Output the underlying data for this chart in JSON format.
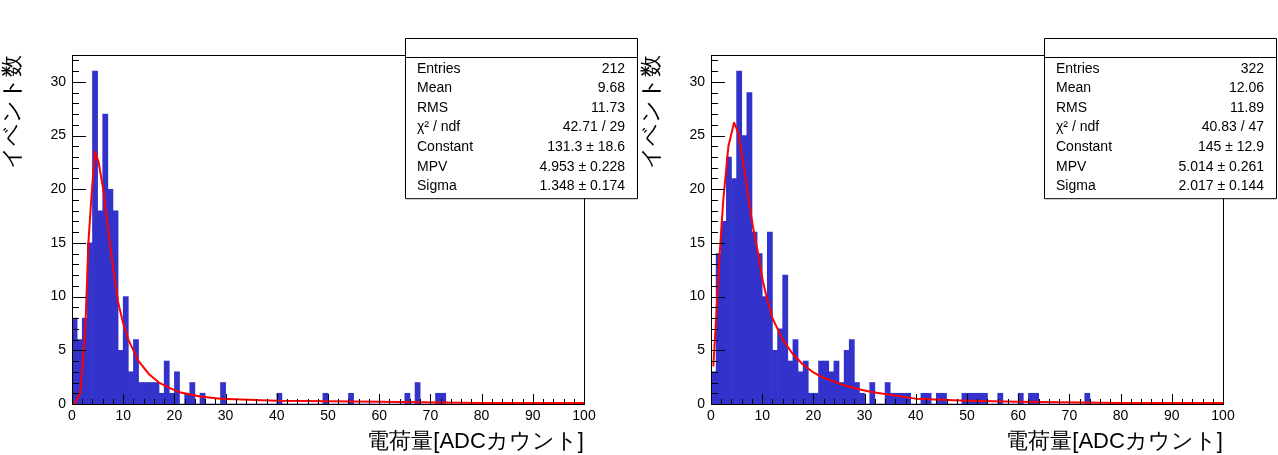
{
  "chart_data": [
    {
      "type": "histogram",
      "xlabel": "電荷量[ADCカウント]",
      "ylabel": "イベント数",
      "color": "#3333cc",
      "grid": false,
      "legend": false,
      "bins": [
        0,
        1,
        2,
        3,
        4,
        5,
        6,
        7,
        8,
        9,
        10,
        11,
        12,
        13,
        14,
        15,
        16,
        17,
        18,
        19,
        20,
        21,
        22,
        23,
        24,
        25,
        26,
        27,
        28,
        29,
        30,
        31,
        32,
        33,
        34,
        35,
        36,
        37,
        38,
        39,
        40,
        41,
        42,
        43,
        44,
        45,
        46,
        47,
        48,
        49,
        50,
        51,
        52,
        53,
        54,
        55,
        56,
        57,
        58,
        59,
        60,
        61,
        62,
        63,
        64,
        65,
        66,
        67,
        68,
        69,
        70,
        71,
        72,
        73,
        74,
        75,
        76,
        77,
        78,
        79,
        80,
        81,
        82,
        83,
        84,
        85,
        86,
        87,
        88,
        89,
        90,
        91,
        92,
        93,
        94,
        95,
        96,
        97,
        98,
        99,
        100
      ],
      "values": [
        8,
        6,
        8,
        15,
        31,
        18,
        27,
        20,
        18,
        5,
        10,
        3,
        6,
        2,
        2,
        2,
        2,
        1,
        4,
        1,
        3,
        0,
        1,
        2,
        0,
        1,
        0,
        0,
        0,
        2,
        0,
        0,
        0,
        0,
        0,
        0,
        0,
        0,
        0,
        0,
        1,
        0,
        0,
        0,
        0,
        0,
        0,
        0,
        0,
        1,
        0,
        0,
        0,
        0,
        1,
        0,
        0,
        0,
        0,
        0,
        0,
        0,
        0,
        0,
        0,
        1,
        0,
        2,
        0,
        0,
        0,
        1,
        1,
        0,
        0,
        0,
        0,
        0,
        0,
        0,
        0,
        0,
        0,
        0,
        0,
        0,
        0,
        0,
        0,
        0,
        0,
        0,
        0,
        0,
        0,
        0,
        0,
        0,
        0,
        0
      ],
      "series": [
        {
          "type": "line",
          "color": "#ff0000",
          "x": [
            0,
            0.5,
            1.6,
            2.6,
            3.2,
            3.9,
            4.5,
            5.2,
            6.1,
            7.1,
            8.1,
            9,
            10,
            11,
            12,
            13,
            15,
            17,
            19,
            21,
            25,
            29,
            40,
            60,
            80,
            100
          ],
          "values": [
            0,
            0,
            1,
            7,
            15,
            20,
            23.5,
            22.5,
            20,
            16,
            12.5,
            9.5,
            7.5,
            6,
            5,
            4,
            2.8,
            2,
            1.5,
            1.1,
            0.7,
            0.5,
            0.3,
            0.2,
            0.1,
            0.1
          ]
        }
      ],
      "xlim": [
        0,
        100
      ],
      "ylim": [
        0,
        32.5
      ],
      "xticks": [
        0,
        {
          "value": 2,
          "label": null
        },
        {
          "value": 4,
          "label": null
        },
        {
          "value": 6,
          "label": null
        },
        {
          "value": 8,
          "label": null
        },
        10,
        {
          "value": 12,
          "label": null
        },
        {
          "value": 14,
          "label": null
        },
        {
          "value": 16,
          "label": null
        },
        {
          "value": 18,
          "label": null
        },
        20,
        {
          "value": 22,
          "label": null
        },
        {
          "value": 24,
          "label": null
        },
        {
          "value": 26,
          "label": null
        },
        {
          "value": 28,
          "label": null
        },
        30,
        {
          "value": 32,
          "label": null
        },
        {
          "value": 34,
          "label": null
        },
        {
          "value": 36,
          "label": null
        },
        {
          "value": 38,
          "label": null
        },
        40,
        {
          "value": 42,
          "label": null
        },
        {
          "value": 44,
          "label": null
        },
        {
          "value": 46,
          "label": null
        },
        {
          "value": 48,
          "label": null
        },
        50,
        {
          "value": 52,
          "label": null
        },
        {
          "value": 54,
          "label": null
        },
        {
          "value": 56,
          "label": null
        },
        {
          "value": 58,
          "label": null
        },
        60,
        {
          "value": 62,
          "label": null
        },
        {
          "value": 64,
          "label": null
        },
        {
          "value": 66,
          "label": null
        },
        {
          "value": 68,
          "label": null
        },
        70,
        {
          "value": 72,
          "label": null
        },
        {
          "value": 74,
          "label": null
        },
        {
          "value": 76,
          "label": null
        },
        {
          "value": 78,
          "label": null
        },
        80,
        {
          "value": 82,
          "label": null
        },
        {
          "value": 84,
          "label": null
        },
        {
          "value": 86,
          "label": null
        },
        {
          "value": 88,
          "label": null
        },
        90,
        {
          "value": 92,
          "label": null
        },
        {
          "value": 94,
          "label": null
        },
        {
          "value": 96,
          "label": null
        },
        {
          "value": 98,
          "label": null
        },
        100
      ],
      "yticks": [
        0,
        {
          "value": 1,
          "label": null
        },
        {
          "value": 2,
          "label": null
        },
        {
          "value": 3,
          "label": null
        },
        {
          "value": 4,
          "label": null
        },
        5,
        {
          "value": 6,
          "label": null
        },
        {
          "value": 7,
          "label": null
        },
        {
          "value": 8,
          "label": null
        },
        {
          "value": 9,
          "label": null
        },
        10,
        {
          "value": 11,
          "label": null
        },
        {
          "value": 12,
          "label": null
        },
        {
          "value": 13,
          "label": null
        },
        {
          "value": 14,
          "label": null
        },
        15,
        {
          "value": 16,
          "label": null
        },
        {
          "value": 17,
          "label": null
        },
        {
          "value": 18,
          "label": null
        },
        {
          "value": 19,
          "label": null
        },
        20,
        {
          "value": 21,
          "label": null
        },
        {
          "value": 22,
          "label": null
        },
        {
          "value": 23,
          "label": null
        },
        {
          "value": 24,
          "label": null
        },
        25,
        {
          "value": 26,
          "label": null
        },
        {
          "value": 27,
          "label": null
        },
        {
          "value": 28,
          "label": null
        },
        {
          "value": 29,
          "label": null
        },
        30,
        {
          "value": 31,
          "label": null
        },
        {
          "value": 32,
          "label": null
        }
      ],
      "annotations": [
        "Entries",
        "212",
        "Mean",
        "9.68",
        "RMS",
        "11.73",
        "χ² / ndf",
        "42.71 / 29",
        "Constant",
        "131.3 ± 18.6",
        "MPV",
        "4.953 ± 0.228",
        "Sigma",
        "1.348 ± 0.174"
      ]
    },
    {
      "type": "histogram",
      "xlabel": "電荷量[ADCカウント]",
      "ylabel": "イベント数",
      "color": "#3333cc",
      "grid": false,
      "legend": false,
      "bins": [
        0,
        1,
        2,
        3,
        4,
        5,
        6,
        7,
        8,
        9,
        10,
        11,
        12,
        13,
        14,
        15,
        16,
        17,
        18,
        19,
        20,
        21,
        22,
        23,
        24,
        25,
        26,
        27,
        28,
        29,
        30,
        31,
        32,
        33,
        34,
        35,
        36,
        37,
        38,
        39,
        40,
        41,
        42,
        43,
        44,
        45,
        46,
        47,
        48,
        49,
        50,
        51,
        52,
        53,
        54,
        55,
        56,
        57,
        58,
        59,
        60,
        61,
        62,
        63,
        64,
        65,
        66,
        67,
        68,
        69,
        70,
        71,
        72,
        73,
        74,
        75,
        76,
        77,
        78,
        79,
        80,
        81,
        82,
        83,
        84,
        85,
        86,
        87,
        88,
        89,
        90,
        91,
        92,
        93,
        94,
        95,
        96,
        97,
        98,
        99,
        100
      ],
      "values": [
        3,
        14,
        17,
        23,
        21,
        31,
        25,
        29,
        16,
        14,
        10,
        16,
        5,
        7,
        12,
        4,
        6,
        3,
        4,
        1,
        1,
        4,
        4,
        3,
        4,
        2,
        5,
        6,
        2,
        1,
        0,
        2,
        0,
        0,
        2,
        1,
        1,
        1,
        1,
        0,
        0,
        1,
        1,
        0,
        1,
        1,
        0,
        0,
        0,
        1,
        1,
        1,
        1,
        1,
        0,
        0,
        1,
        0,
        0,
        0,
        1,
        0,
        1,
        1,
        0,
        0,
        0,
        0,
        0,
        0,
        0,
        0,
        0,
        1,
        0,
        0,
        0,
        0,
        0,
        0,
        0,
        0,
        0,
        0,
        0,
        0,
        0,
        0,
        0,
        0,
        0,
        0,
        0,
        0,
        0,
        0,
        0,
        0,
        0,
        0
      ],
      "series": [
        {
          "type": "line",
          "color": "#ff0000",
          "x": [
            0.45,
            1,
            1.7,
            2.4,
            3.4,
            4.5,
            5.3,
            6.3,
            7.2,
            8.2,
            9.2,
            10.1,
            11.1,
            12,
            14,
            15.9,
            17.9,
            19.8,
            21.7,
            25.6,
            29.5,
            31.7,
            40,
            50,
            60,
            80,
            100
          ],
          "values": [
            3.5,
            8,
            14,
            19,
            24,
            26.2,
            25.3,
            22.5,
            19.5,
            16.5,
            14,
            11.5,
            9.5,
            8,
            6,
            4.7,
            3.7,
            3,
            2.5,
            1.8,
            1.3,
            1.1,
            0.5,
            0.3,
            0.2,
            0.1,
            0.1
          ]
        }
      ],
      "xlim": [
        0,
        100
      ],
      "ylim": [
        0,
        32.5
      ],
      "xticks": [
        0,
        {
          "value": 2,
          "label": null
        },
        {
          "value": 4,
          "label": null
        },
        {
          "value": 6,
          "label": null
        },
        {
          "value": 8,
          "label": null
        },
        10,
        {
          "value": 12,
          "label": null
        },
        {
          "value": 14,
          "label": null
        },
        {
          "value": 16,
          "label": null
        },
        {
          "value": 18,
          "label": null
        },
        20,
        {
          "value": 22,
          "label": null
        },
        {
          "value": 24,
          "label": null
        },
        {
          "value": 26,
          "label": null
        },
        {
          "value": 28,
          "label": null
        },
        30,
        {
          "value": 32,
          "label": null
        },
        {
          "value": 34,
          "label": null
        },
        {
          "value": 36,
          "label": null
        },
        {
          "value": 38,
          "label": null
        },
        40,
        {
          "value": 42,
          "label": null
        },
        {
          "value": 44,
          "label": null
        },
        {
          "value": 46,
          "label": null
        },
        {
          "value": 48,
          "label": null
        },
        50,
        {
          "value": 52,
          "label": null
        },
        {
          "value": 54,
          "label": null
        },
        {
          "value": 56,
          "label": null
        },
        {
          "value": 58,
          "label": null
        },
        60,
        {
          "value": 62,
          "label": null
        },
        {
          "value": 64,
          "label": null
        },
        {
          "value": 66,
          "label": null
        },
        {
          "value": 68,
          "label": null
        },
        70,
        {
          "value": 72,
          "label": null
        },
        {
          "value": 74,
          "label": null
        },
        {
          "value": 76,
          "label": null
        },
        {
          "value": 78,
          "label": null
        },
        80,
        {
          "value": 82,
          "label": null
        },
        {
          "value": 84,
          "label": null
        },
        {
          "value": 86,
          "label": null
        },
        {
          "value": 88,
          "label": null
        },
        90,
        {
          "value": 92,
          "label": null
        },
        {
          "value": 94,
          "label": null
        },
        {
          "value": 96,
          "label": null
        },
        {
          "value": 98,
          "label": null
        },
        100
      ],
      "yticks": [
        0,
        {
          "value": 1,
          "label": null
        },
        {
          "value": 2,
          "label": null
        },
        {
          "value": 3,
          "label": null
        },
        {
          "value": 4,
          "label": null
        },
        5,
        {
          "value": 6,
          "label": null
        },
        {
          "value": 7,
          "label": null
        },
        {
          "value": 8,
          "label": null
        },
        {
          "value": 9,
          "label": null
        },
        10,
        {
          "value": 11,
          "label": null
        },
        {
          "value": 12,
          "label": null
        },
        {
          "value": 13,
          "label": null
        },
        {
          "value": 14,
          "label": null
        },
        15,
        {
          "value": 16,
          "label": null
        },
        {
          "value": 17,
          "label": null
        },
        {
          "value": 18,
          "label": null
        },
        {
          "value": 19,
          "label": null
        },
        20,
        {
          "value": 21,
          "label": null
        },
        {
          "value": 22,
          "label": null
        },
        {
          "value": 23,
          "label": null
        },
        {
          "value": 24,
          "label": null
        },
        25,
        {
          "value": 26,
          "label": null
        },
        {
          "value": 27,
          "label": null
        },
        {
          "value": 28,
          "label": null
        },
        {
          "value": 29,
          "label": null
        },
        30,
        {
          "value": 31,
          "label": null
        },
        {
          "value": 32,
          "label": null
        }
      ],
      "annotations": [
        "Entries",
        "322",
        "Mean",
        "12.06",
        "RMS",
        "11.89",
        "χ² / ndf",
        "40.83 / 47",
        "Constant",
        "145 ± 12.9",
        "MPV",
        "5.014 ± 0.261",
        "Sigma",
        "2.017 ± 0.144"
      ]
    }
  ]
}
